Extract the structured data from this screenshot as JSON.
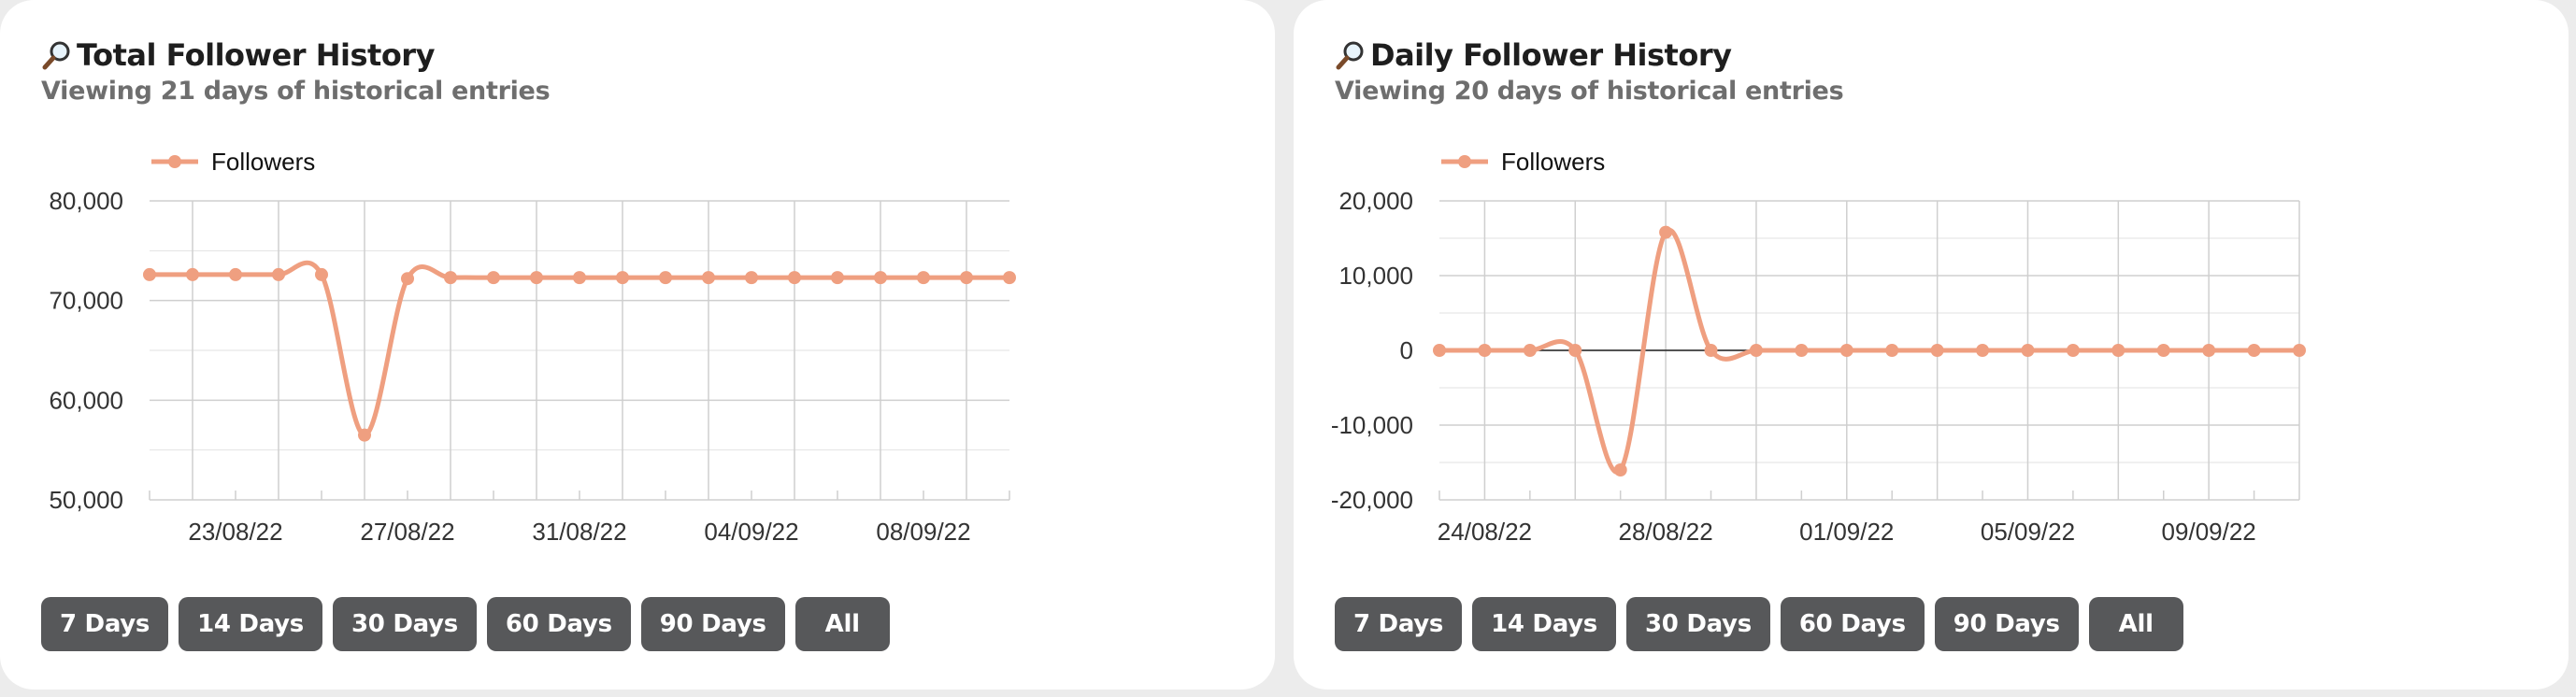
{
  "colors": {
    "series": "#ef9f80",
    "grid": "#cfcfcf",
    "axis_text": "#333333",
    "button_bg": "#57585a"
  },
  "icons": {
    "title_icon": "magnifier-icon"
  },
  "buttons": [
    "7 Days",
    "14 Days",
    "30 Days",
    "60 Days",
    "90 Days",
    "All"
  ],
  "cards": [
    {
      "title": "Total Follower History",
      "subtitle": "Viewing 21 days of historical entries"
    },
    {
      "title": "Daily Follower History",
      "subtitle": "Viewing 20 days of historical entries"
    }
  ],
  "chart_data": [
    {
      "type": "line",
      "legend": "top-left",
      "grid": true,
      "curve": "smooth",
      "x": [
        "21/08/22",
        "22/08/22",
        "23/08/22",
        "24/08/22",
        "25/08/22",
        "26/08/22",
        "27/08/22",
        "28/08/22",
        "29/08/22",
        "30/08/22",
        "31/08/22",
        "01/09/22",
        "02/09/22",
        "03/09/22",
        "04/09/22",
        "05/09/22",
        "06/09/22",
        "07/09/22",
        "08/09/22",
        "09/09/22",
        "10/09/22"
      ],
      "x_tick_labels": [
        "23/08/22",
        "27/08/22",
        "31/08/22",
        "04/09/22",
        "08/09/22"
      ],
      "series": [
        {
          "name": "Followers",
          "values": [
            72600,
            72600,
            72600,
            72600,
            72600,
            56500,
            72200,
            72300,
            72300,
            72300,
            72300,
            72300,
            72300,
            72300,
            72300,
            72300,
            72300,
            72300,
            72300,
            72300,
            72300
          ]
        }
      ],
      "ylim": [
        50000,
        80000
      ],
      "y_tick_labels": [
        "50,000",
        "60,000",
        "70,000",
        "80,000"
      ]
    },
    {
      "type": "line",
      "legend": "top-left",
      "grid": true,
      "curve": "smooth",
      "x": [
        "23/08/22",
        "24/08/22",
        "25/08/22",
        "26/08/22",
        "27/08/22",
        "28/08/22",
        "29/08/22",
        "30/08/22",
        "31/08/22",
        "01/09/22",
        "02/09/22",
        "03/09/22",
        "04/09/22",
        "05/09/22",
        "06/09/22",
        "07/09/22",
        "08/09/22",
        "09/09/22",
        "10/09/22",
        "11/09/22"
      ],
      "x_tick_labels": [
        "24/08/22",
        "28/08/22",
        "01/09/22",
        "05/09/22",
        "09/09/22"
      ],
      "series": [
        {
          "name": "Followers",
          "values": [
            0,
            0,
            0,
            0,
            -16000,
            15800,
            0,
            0,
            0,
            0,
            0,
            0,
            0,
            0,
            0,
            0,
            0,
            0,
            0,
            0
          ]
        }
      ],
      "ylim": [
        -20000,
        20000
      ],
      "y_tick_labels": [
        "-20,000",
        "-10,000",
        "0",
        "10,000",
        "20,000"
      ]
    }
  ]
}
